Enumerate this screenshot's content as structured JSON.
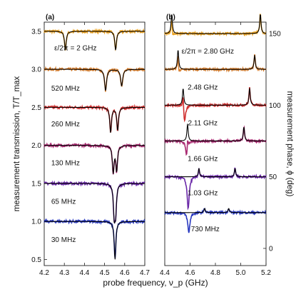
{
  "chart_data": [
    {
      "type": "line",
      "panel_label": "(a)",
      "xlabel": "probe frequency, ν_p (GHz)",
      "ylabel": "measurement transmission, T/T_max",
      "xlim": [
        4.2,
        4.7
      ],
      "ylim": [
        0.42,
        3.62
      ],
      "x_ticks": [
        4.2,
        4.3,
        4.4,
        4.5,
        4.6,
        4.7
      ],
      "y_ticks": [
        0.5,
        1.0,
        1.5,
        2.0,
        2.5,
        3.0,
        3.5
      ],
      "x_tick_labels": [
        "4.2",
        "4.3",
        "4.4",
        "4.5",
        "4.6",
        "4.7"
      ],
      "y_tick_labels": [
        "0.5",
        "1.0",
        "1.5",
        "2.0",
        "2.5",
        "3.0",
        "3.5"
      ],
      "series": [
        {
          "label": "ε/2π = 2 GHz",
          "color": "#e8a020",
          "offset": 3.5,
          "dips": [
            {
              "x": 4.305,
              "depth": 0.25,
              "w": 0.005
            },
            {
              "x": 4.555,
              "depth": 0.25,
              "w": 0.005
            }
          ]
        },
        {
          "label": "520 MHz",
          "color": "#d88030",
          "offset": 3.0,
          "dips": [
            {
              "x": 4.505,
              "depth": 0.28,
              "w": 0.006
            },
            {
              "x": 4.585,
              "depth": 0.22,
              "w": 0.006
            }
          ]
        },
        {
          "label": "260 MHz",
          "color": "#d03030",
          "offset": 2.5,
          "dips": [
            {
              "x": 4.53,
              "depth": 0.33,
              "w": 0.005
            },
            {
              "x": 4.565,
              "depth": 0.3,
              "w": 0.005
            }
          ]
        },
        {
          "label": "130 MHz",
          "color": "#a82870",
          "offset": 2.0,
          "dips": [
            {
              "x": 4.543,
              "depth": 0.35,
              "w": 0.005
            },
            {
              "x": 4.56,
              "depth": 0.33,
              "w": 0.005
            }
          ]
        },
        {
          "label": "65 MHz",
          "color": "#6a28a8",
          "offset": 1.5,
          "dips": [
            {
              "x": 4.548,
              "depth": 0.4,
              "w": 0.005
            },
            {
              "x": 4.555,
              "depth": 0.35,
              "w": 0.005
            }
          ]
        },
        {
          "label": "30 MHz",
          "color": "#2838c0",
          "offset": 1.0,
          "dips": [
            {
              "x": 4.552,
              "depth": 0.5,
              "w": 0.005
            }
          ]
        }
      ]
    },
    {
      "type": "line",
      "panel_label": "(b)",
      "xlabel": "",
      "ylabel": "measurement phase, ϕ (deg)",
      "xlim": [
        4.4,
        5.2
      ],
      "ylim": [
        -12,
        158
      ],
      "x_ticks": [
        4.4,
        4.6,
        4.8,
        5.0,
        5.2
      ],
      "y_ticks": [
        0,
        50,
        100,
        150
      ],
      "x_tick_labels": [
        "4.4",
        "4.6",
        "4.8",
        "5.0",
        "5.2"
      ],
      "y_tick_labels": [
        "0",
        "50",
        "100",
        "150"
      ],
      "series": [
        {
          "label": "ε/2π = 2.80 GHz",
          "color": "#e8a020",
          "offset": 150,
          "peaks": [
            {
              "x": 4.455,
              "amp": 14,
              "w": 0.006
            },
            {
              "x": 5.155,
              "amp": 14,
              "w": 0.006
            }
          ],
          "data_dips": [
            {
              "x": 4.46,
              "amp": 6,
              "w": 0.008
            }
          ]
        },
        {
          "label": "2.48 GHz",
          "color": "#d88030",
          "offset": 125,
          "peaks": [
            {
              "x": 4.505,
              "amp": 14,
              "w": 0.006
            },
            {
              "x": 5.11,
              "amp": 10,
              "w": 0.006
            }
          ],
          "data_dips": [
            {
              "x": 4.51,
              "amp": 7,
              "w": 0.008
            }
          ]
        },
        {
          "label": "2.11 GHz",
          "color": "#d03030",
          "offset": 100,
          "peaks": [
            {
              "x": 4.545,
              "amp": 12,
              "w": 0.006
            },
            {
              "x": 5.07,
              "amp": 12,
              "w": 0.006
            }
          ],
          "data_dips": [
            {
              "x": 4.555,
              "amp": 14,
              "w": 0.01
            }
          ]
        },
        {
          "label": "1.66 GHz",
          "color": "#a82870",
          "offset": 75,
          "peaks": [
            {
              "x": 4.58,
              "amp": 12,
              "w": 0.006
            },
            {
              "x": 5.025,
              "amp": 10,
              "w": 0.006
            }
          ],
          "data_dips": [
            {
              "x": 4.575,
              "amp": 15,
              "w": 0.01
            }
          ]
        },
        {
          "label": "1.03 GHz",
          "color": "#6a28a8",
          "offset": 50,
          "peaks": [
            {
              "x": 4.67,
              "amp": 6,
              "w": 0.006
            },
            {
              "x": 4.955,
              "amp": 6,
              "w": 0.006
            }
          ],
          "data_dips": [
            {
              "x": 4.585,
              "amp": 22,
              "w": 0.01
            }
          ]
        },
        {
          "label": "730 MHz",
          "color": "#2838c0",
          "offset": 25,
          "peaks": [
            {
              "x": 4.715,
              "amp": 3,
              "w": 0.006
            },
            {
              "x": 4.905,
              "amp": 3,
              "w": 0.006
            }
          ],
          "data_dips": [
            {
              "x": 4.59,
              "amp": 14,
              "w": 0.01
            }
          ]
        }
      ]
    }
  ]
}
